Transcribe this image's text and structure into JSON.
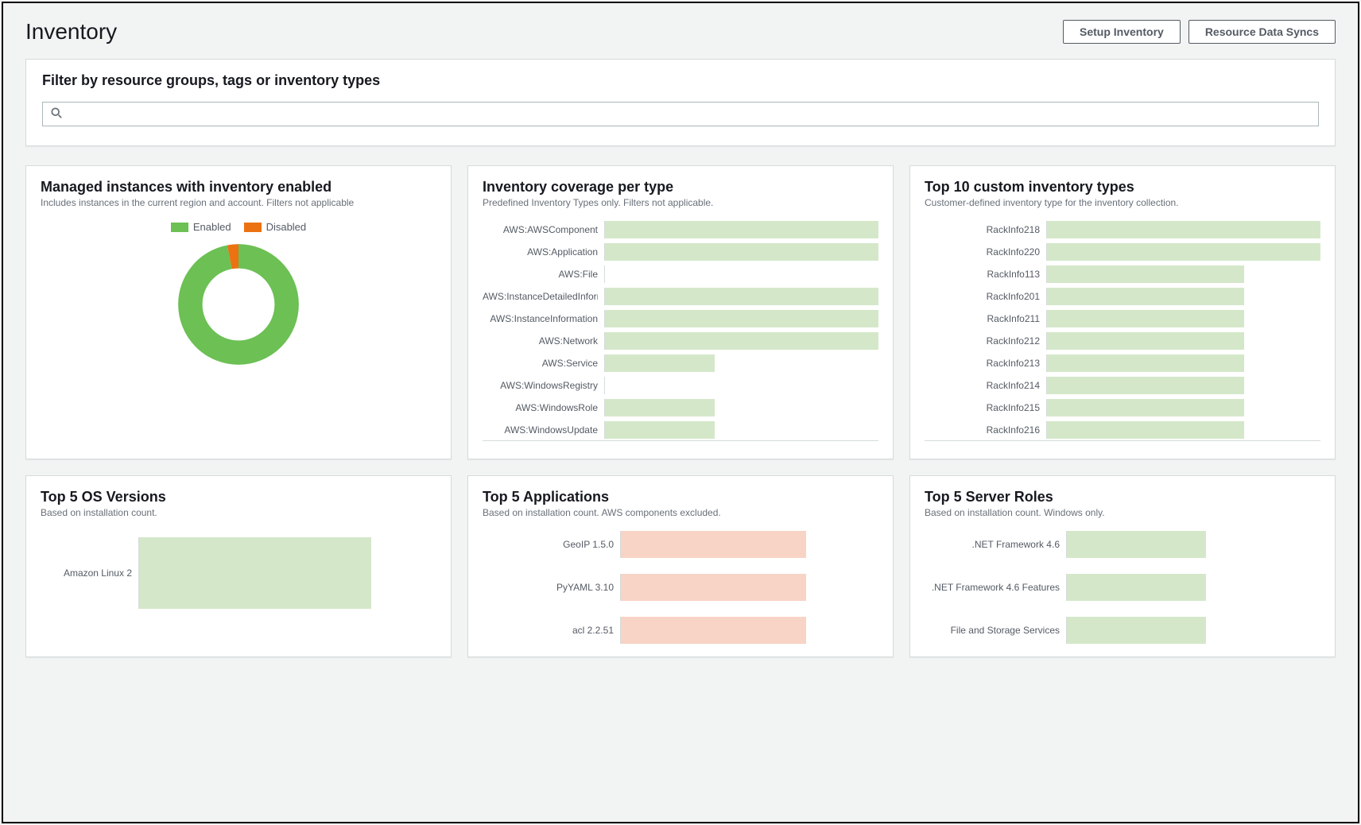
{
  "header": {
    "title": "Inventory",
    "setup_btn": "Setup Inventory",
    "sync_btn": "Resource Data Syncs"
  },
  "filter": {
    "title": "Filter by resource groups, tags or inventory types",
    "placeholder": ""
  },
  "colors": {
    "green_fill": "#d4e8c9",
    "green_solid": "#6cc054",
    "orange_fill": "#f7d4c5",
    "orange_solid": "#ec7211",
    "panel_border": "#d5dbdb",
    "text_muted": "#687078",
    "bg": "#f2f3f3"
  },
  "panels": {
    "managed": {
      "title": "Managed instances with inventory enabled",
      "subtitle": "Includes instances in the current region and account. Filters not applicable",
      "legend": {
        "enabled": "Enabled",
        "disabled": "Disabled"
      },
      "donut": {
        "enabled_pct": 97,
        "disabled_pct": 3,
        "enabled_color": "#6cc054",
        "disabled_color": "#ec7211",
        "inner_ratio": 0.55
      }
    },
    "coverage": {
      "title": "Inventory coverage per type",
      "subtitle": "Predefined Inventory Types only. Filters not applicable.",
      "bar_color": "#d4e8c9",
      "max": 100,
      "items": [
        {
          "label": "AWS:AWSComponent",
          "value": 100
        },
        {
          "label": "AWS:Application",
          "value": 100
        },
        {
          "label": "AWS:File",
          "value": 0
        },
        {
          "label": "AWS:InstanceDetailedInformation",
          "value": 100
        },
        {
          "label": "AWS:InstanceInformation",
          "value": 100
        },
        {
          "label": "AWS:Network",
          "value": 100
        },
        {
          "label": "AWS:Service",
          "value": 40
        },
        {
          "label": "AWS:WindowsRegistry",
          "value": 0
        },
        {
          "label": "AWS:WindowsRole",
          "value": 40
        },
        {
          "label": "AWS:WindowsUpdate",
          "value": 40
        }
      ]
    },
    "top_custom": {
      "title": "Top 10 custom inventory types",
      "subtitle": "Customer-defined inventory type for the inventory collection.",
      "bar_color": "#d4e8c9",
      "max": 100,
      "items": [
        {
          "label": "RackInfo218",
          "value": 100
        },
        {
          "label": "RackInfo220",
          "value": 100
        },
        {
          "label": "RackInfo113",
          "value": 72
        },
        {
          "label": "RackInfo201",
          "value": 72
        },
        {
          "label": "RackInfo211",
          "value": 72
        },
        {
          "label": "RackInfo212",
          "value": 72
        },
        {
          "label": "RackInfo213",
          "value": 72
        },
        {
          "label": "RackInfo214",
          "value": 72
        },
        {
          "label": "RackInfo215",
          "value": 72
        },
        {
          "label": "RackInfo216",
          "value": 72
        }
      ]
    },
    "top_os": {
      "title": "Top 5 OS Versions",
      "subtitle": "Based on installation count.",
      "bar_color": "#d4e8c9",
      "max": 100,
      "items": [
        {
          "label": "Amazon Linux 2",
          "value": 78
        }
      ]
    },
    "top_apps": {
      "title": "Top 5 Applications",
      "subtitle": "Based on installation count. AWS components excluded.",
      "bar_color": "#f7d4c5",
      "max": 100,
      "items": [
        {
          "label": "GeoIP 1.5.0",
          "value": 72
        },
        {
          "label": "PyYAML 3.10",
          "value": 72
        },
        {
          "label": "acl 2.2.51",
          "value": 72
        }
      ]
    },
    "top_roles": {
      "title": "Top 5 Server Roles",
      "subtitle": "Based on installation count. Windows only.",
      "bar_color": "#d4e8c9",
      "max": 100,
      "items": [
        {
          "label": ".NET Framework 4.6",
          "value": 55
        },
        {
          "label": ".NET Framework 4.6 Features",
          "value": 55
        },
        {
          "label": "File and Storage Services",
          "value": 55
        }
      ]
    }
  }
}
